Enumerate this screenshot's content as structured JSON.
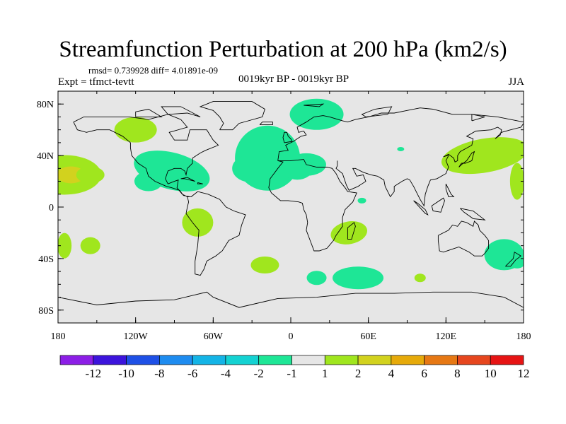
{
  "figure": {
    "title": "Streamfunction Perturbation at 200 hPa (km2/s)",
    "stats": "rmsd= 0.739928 diff= 4.01891e-09",
    "experiment": "Expt = tfmct-tevtt",
    "period": "0019kyr BP - 0019kyr BP",
    "season": "JJA"
  },
  "chart_data": {
    "type": "heatmap",
    "projection": "cylindrical equidistant",
    "xlim": [
      -180,
      180
    ],
    "ylim": [
      -90,
      90
    ],
    "x_ticks": [
      {
        "value": -180,
        "label": "180"
      },
      {
        "value": -120,
        "label": "120W"
      },
      {
        "value": -60,
        "label": "60W"
      },
      {
        "value": 0,
        "label": "0"
      },
      {
        "value": 60,
        "label": "60E"
      },
      {
        "value": 120,
        "label": "120E"
      },
      {
        "value": 180,
        "label": "180"
      }
    ],
    "y_ticks": [
      {
        "value": 80,
        "label": "80N"
      },
      {
        "value": 40,
        "label": "40N"
      },
      {
        "value": 0,
        "label": "0"
      },
      {
        "value": -40,
        "label": "40S"
      },
      {
        "value": -80,
        "label": "80S"
      }
    ],
    "background_color": "#e6e6e6",
    "land_outline_color": "#000000",
    "levels": [
      -12,
      -10,
      -8,
      -6,
      -4,
      -2,
      -1,
      1,
      2,
      4,
      6,
      8,
      10,
      12
    ],
    "level_labels": [
      "-12",
      "-10",
      "-8",
      "-6",
      "-4",
      "-2",
      "-1",
      "1",
      "2",
      "4",
      "6",
      "8",
      "10",
      "12"
    ],
    "colors": [
      "#8c1ee6",
      "#3c14dc",
      "#1e50e6",
      "#1e8cf0",
      "#14b4e6",
      "#14d2d2",
      "#1ee696",
      "#e6e6e6",
      "#a0e61e",
      "#d2d21e",
      "#e6aa0a",
      "#e67814",
      "#e6461e",
      "#e61414"
    ],
    "anomalies": [
      {
        "region": "north atlantic / western europe",
        "lon": -18,
        "lat": 38,
        "value": -1.5
      },
      {
        "region": "scandinavia / barents sea",
        "lon": 20,
        "lat": 72,
        "value": -1.5
      },
      {
        "region": "gulf of mexico / caribbean",
        "lon": -92,
        "lat": 28,
        "value": -1.5
      },
      {
        "region": "western asia",
        "lon": 12,
        "lat": 33,
        "value": -1.5
      },
      {
        "region": "south atlantic",
        "lon": -20,
        "lat": -45,
        "value": 1.5
      },
      {
        "region": "south indian ocean",
        "lon": 52,
        "lat": -55,
        "value": -1.5
      },
      {
        "region": "south australia",
        "lon": 165,
        "lat": -37,
        "value": -1.5
      },
      {
        "region": "madagascar region",
        "lon": 45,
        "lat": -20,
        "value": 1.5
      },
      {
        "region": "north pacific",
        "lon": -175,
        "lat": 25,
        "value": 1.5
      },
      {
        "region": "central north pacific core",
        "lon": -170,
        "lat": 25,
        "value": 3
      },
      {
        "region": "canada",
        "lon": -120,
        "lat": 60,
        "value": 1.5
      },
      {
        "region": "east asia / northwest pacific",
        "lon": 150,
        "lat": 40,
        "value": 1.5
      },
      {
        "region": "south america",
        "lon": -72,
        "lat": -12,
        "value": 1.5
      },
      {
        "region": "southeast pacific",
        "lon": -155,
        "lat": -30,
        "value": 1.5
      }
    ]
  },
  "colorbar": {
    "labels": [
      "-12",
      "-10",
      "-8",
      "-6",
      "-4",
      "-2",
      "-1",
      "1",
      "2",
      "4",
      "6",
      "8",
      "10",
      "12"
    ]
  }
}
